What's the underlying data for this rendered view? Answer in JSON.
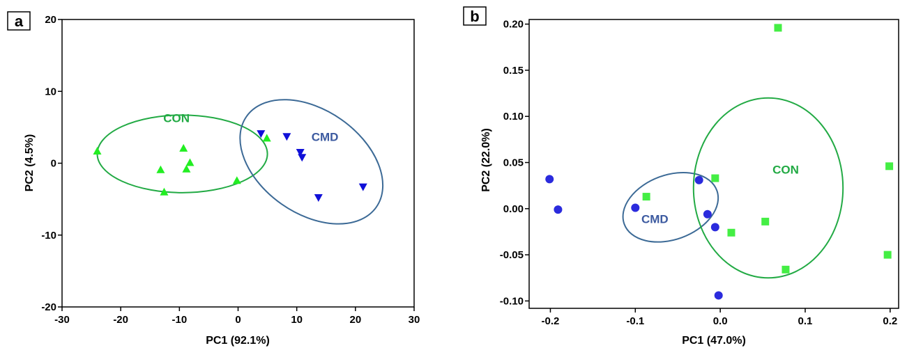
{
  "chart_data": [
    {
      "type": "scatter",
      "panel_label": "a",
      "xlabel": "PC1 (92.1%)",
      "ylabel": "PC2 (4.5%)",
      "xlim": [
        -30,
        30
      ],
      "ylim": [
        -20,
        20
      ],
      "xticks": [
        -30,
        -20,
        -10,
        0,
        10,
        20,
        30
      ],
      "yticks": [
        -20,
        -10,
        0,
        10,
        20
      ],
      "grid": false,
      "series": [
        {
          "group": "CON",
          "marker": "triangle-up",
          "color": "#22ee22",
          "points": [
            [
              -24,
              1.7
            ],
            [
              -13.2,
              -0.9
            ],
            [
              -12.6,
              -4
            ],
            [
              -9.3,
              2.1
            ],
            [
              -8.8,
              -0.8
            ],
            [
              -8.2,
              0.1
            ],
            [
              -0.2,
              -2.4
            ],
            [
              4.9,
              3.5
            ]
          ]
        },
        {
          "group": "CMD",
          "marker": "triangle-down",
          "color": "#1010d8",
          "points": [
            [
              3.9,
              4.1
            ],
            [
              8.3,
              3.7
            ],
            [
              10.6,
              1.5
            ],
            [
              10.9,
              0.8
            ],
            [
              13.7,
              -4.8
            ],
            [
              21.3,
              -3.3
            ]
          ]
        }
      ],
      "ellipses": [
        {
          "label": "CON",
          "color": "#22aa44",
          "label_color": "#22aa44",
          "cx": -9.5,
          "cy": 1.3,
          "rx": 14.5,
          "ry": 5.4,
          "angle_deg": 0
        },
        {
          "label": "CMD",
          "color": "#3c6a96",
          "label_color": "#3c5aa0",
          "cx": 12.5,
          "cy": 0.2,
          "rx": 13.5,
          "ry": 7.2,
          "angle_deg": -35
        }
      ],
      "annotations": [
        {
          "text": "CON",
          "x": -10.5,
          "y": 5.7,
          "color": "#22aa44"
        },
        {
          "text": "CMD",
          "x": 14.8,
          "y": 3.1,
          "color": "#3c5aa0"
        }
      ]
    },
    {
      "type": "scatter",
      "panel_label": "b",
      "xlabel": "PC1 (47.0%)",
      "ylabel": "PC2 (22.0%)",
      "xlim": [
        -0.225,
        0.21
      ],
      "ylim": [
        -0.108,
        0.205
      ],
      "xticks": [
        -0.2,
        -0.1,
        0.0,
        0.1,
        0.2
      ],
      "xtick_labels": [
        "-0.2",
        "-0.1",
        "0.0",
        "0.1",
        "0.2"
      ],
      "yticks": [
        -0.1,
        -0.05,
        0.0,
        0.05,
        0.1,
        0.15,
        0.2
      ],
      "ytick_labels": [
        "-0.10",
        "-0.05",
        "0.00",
        "0.05",
        "0.10",
        "0.15",
        "0.20"
      ],
      "grid": false,
      "series": [
        {
          "group": "CMD",
          "marker": "circle",
          "color": "#2b2bdd",
          "points": [
            [
              -0.201,
              0.032
            ],
            [
              -0.191,
              -0.001
            ],
            [
              -0.1,
              0.001
            ],
            [
              -0.025,
              0.031
            ],
            [
              -0.015,
              -0.006
            ],
            [
              -0.006,
              -0.02
            ],
            [
              -0.002,
              -0.094
            ]
          ]
        },
        {
          "group": "CON",
          "marker": "square",
          "color": "#44ee44",
          "points": [
            [
              -0.087,
              0.013
            ],
            [
              -0.006,
              0.033
            ],
            [
              0.013,
              -0.026
            ],
            [
              0.053,
              -0.014
            ],
            [
              0.068,
              0.196
            ],
            [
              0.077,
              -0.066
            ],
            [
              0.197,
              -0.05
            ],
            [
              0.199,
              0.046
            ]
          ]
        }
      ],
      "ellipses": [
        {
          "label": "CMD",
          "color": "#3c6a96",
          "label_color": "#3c5aa0",
          "cx": -0.0585,
          "cy": 0.0015,
          "rx": 0.058,
          "ry": 0.035,
          "angle_deg": 20
        },
        {
          "label": "CON",
          "color": "#22aa44",
          "label_color": "#22aa44",
          "cx": 0.0565,
          "cy": 0.0225,
          "rx": 0.088,
          "ry": 0.0975,
          "angle_deg": 0
        }
      ],
      "annotations": [
        {
          "text": "CMD",
          "x": -0.077,
          "y": -0.0155,
          "color": "#3c5aa0"
        },
        {
          "text": "CON",
          "x": 0.077,
          "y": 0.038,
          "color": "#22aa44"
        }
      ]
    }
  ]
}
